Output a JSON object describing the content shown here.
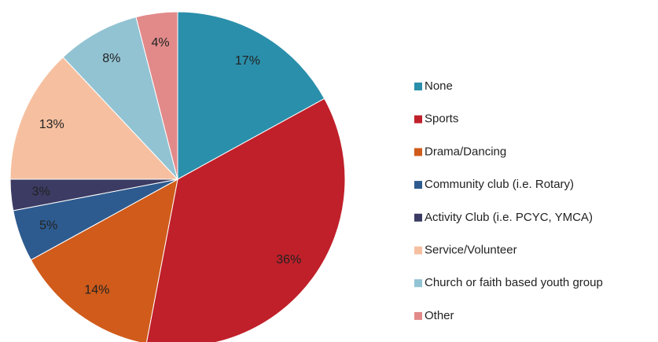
{
  "chart_data": {
    "type": "pie",
    "categories": [
      "None",
      "Sports",
      "Drama/Dancing",
      "Community club (i.e. Rotary)",
      "Activity Club (i.e. PCYC, YMCA)",
      "Service/Volunteer",
      "Church or faith based youth group",
      "Other"
    ],
    "values": [
      17,
      36,
      14,
      5,
      3,
      13,
      8,
      4
    ],
    "value_labels": [
      "17%",
      "36%",
      "14%",
      "5%",
      "3%",
      "13%",
      "8%",
      "4%"
    ],
    "colors": [
      "#2a8fab",
      "#c0202a",
      "#d05b1a",
      "#2e5b8f",
      "#3b3b63",
      "#f6c0a0",
      "#92c3d3",
      "#e28a8a"
    ],
    "legend": "right"
  }
}
